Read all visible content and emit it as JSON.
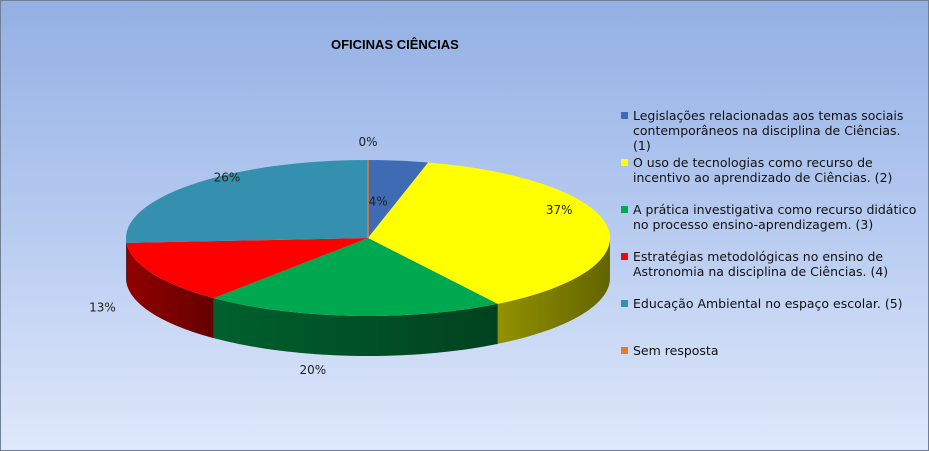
{
  "chart_data": {
    "type": "pie",
    "title": "OFICINAS CIÊNCIAS",
    "categories": [
      "Legislações relacionadas aos temas sociais contemporâneos na disciplina de Ciências. (1)",
      "O uso de tecnologias como recurso de incentivo ao aprendizado de Ciências. (2)",
      "A prática investigativa como recurso didático no processo ensino-aprendizagem. (3)",
      "Estratégias metodológicas no ensino de Astronomia na disciplina de Ciências. (4)",
      "Educação Ambiental no espaço escolar. (5)",
      "Sem resposta"
    ],
    "values": [
      4,
      37,
      20,
      13,
      26,
      0
    ],
    "labels": [
      "4%",
      "37%",
      "20%",
      "13%",
      "26%",
      "0%"
    ],
    "colors": [
      "#3f6bb5",
      "#ffff00",
      "#00a94f",
      "#ff0000",
      "#3590b0",
      "#e97a28"
    ],
    "legend_position": "right",
    "style": "3d"
  }
}
